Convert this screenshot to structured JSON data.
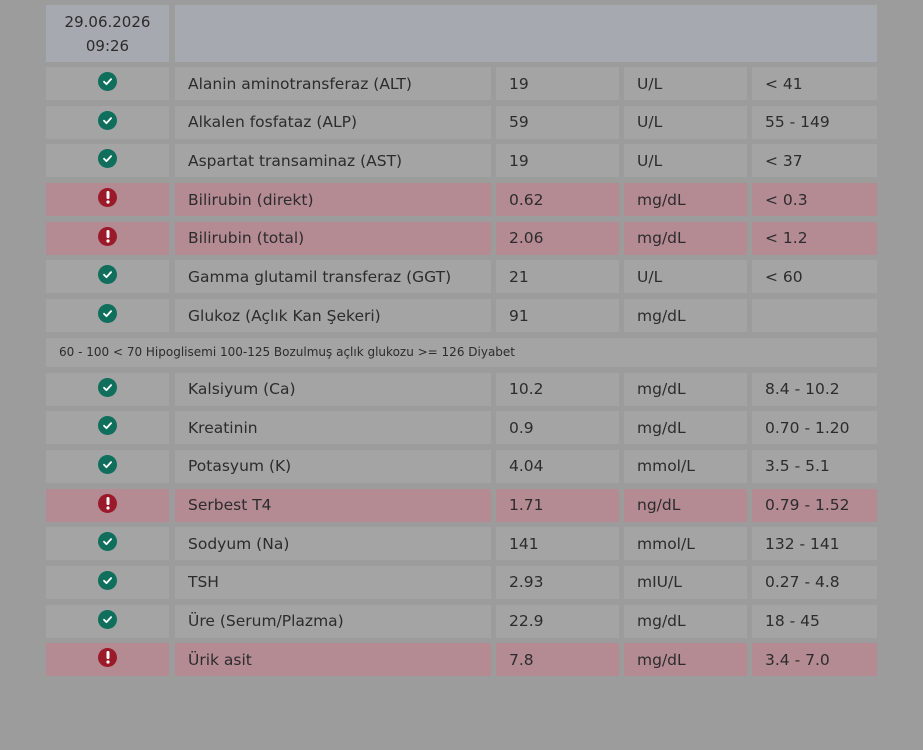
{
  "header": {
    "date": "29.06.2026",
    "time": "09:26"
  },
  "rows_top": [
    {
      "status": "ok",
      "name": "Alanin aminotransferaz (ALT)",
      "value": "19",
      "unit": "U/L",
      "ref": "< 41"
    },
    {
      "status": "ok",
      "name": "Alkalen fosfataz (ALP)",
      "value": "59",
      "unit": "U/L",
      "ref": "55 - 149"
    },
    {
      "status": "ok",
      "name": "Aspartat transaminaz (AST)",
      "value": "19",
      "unit": "U/L",
      "ref": "< 37"
    },
    {
      "status": "err",
      "name": "Bilirubin (direkt)",
      "value": "0.62",
      "unit": "mg/dL",
      "ref": "< 0.3"
    },
    {
      "status": "err",
      "name": "Bilirubin (total)",
      "value": "2.06",
      "unit": "mg/dL",
      "ref": "< 1.2"
    },
    {
      "status": "ok",
      "name": "Gamma glutamil transferaz (GGT)",
      "value": "21",
      "unit": "U/L",
      "ref": "< 60"
    },
    {
      "status": "ok",
      "name": "Glukoz (Açlık Kan Şekeri)",
      "value": "91",
      "unit": "mg/dL",
      "ref": ""
    }
  ],
  "note": "60 - 100 < 70 Hipoglisemi 100-125 Bozulmuş açlık glukozu >= 126 Diyabet",
  "rows_bottom": [
    {
      "status": "ok",
      "name": "Kalsiyum (Ca)",
      "value": "10.2",
      "unit": "mg/dL",
      "ref": "8.4 - 10.2"
    },
    {
      "status": "ok",
      "name": "Kreatinin",
      "value": "0.9",
      "unit": "mg/dL",
      "ref": "0.70 - 1.20"
    },
    {
      "status": "ok",
      "name": "Potasyum (K)",
      "value": "4.04",
      "unit": "mmol/L",
      "ref": "3.5 - 5.1"
    },
    {
      "status": "err",
      "name": "Serbest T4",
      "value": "1.71",
      "unit": "ng/dL",
      "ref": "0.79 - 1.52"
    },
    {
      "status": "ok",
      "name": "Sodyum (Na)",
      "value": "141",
      "unit": "mmol/L",
      "ref": "132 - 141"
    },
    {
      "status": "ok",
      "name": "TSH",
      "value": "2.93",
      "unit": "mIU/L",
      "ref": "0.27 - 4.8"
    },
    {
      "status": "ok",
      "name": "Üre (Serum/Plazma)",
      "value": "22.9",
      "unit": "mg/dL",
      "ref": "18 - 45"
    },
    {
      "status": "err",
      "name": "Ürik asit",
      "value": "7.8",
      "unit": "mg/dL",
      "ref": "3.4 - 7.0"
    }
  ],
  "icons": {
    "ok": "check-circle-icon",
    "err": "exclamation-circle-icon"
  },
  "colors": {
    "ok": "#0f6e5c",
    "err": "#9b1a2a",
    "abnormal_row": "#b58b93",
    "normal_row": "#a4a4a4"
  }
}
